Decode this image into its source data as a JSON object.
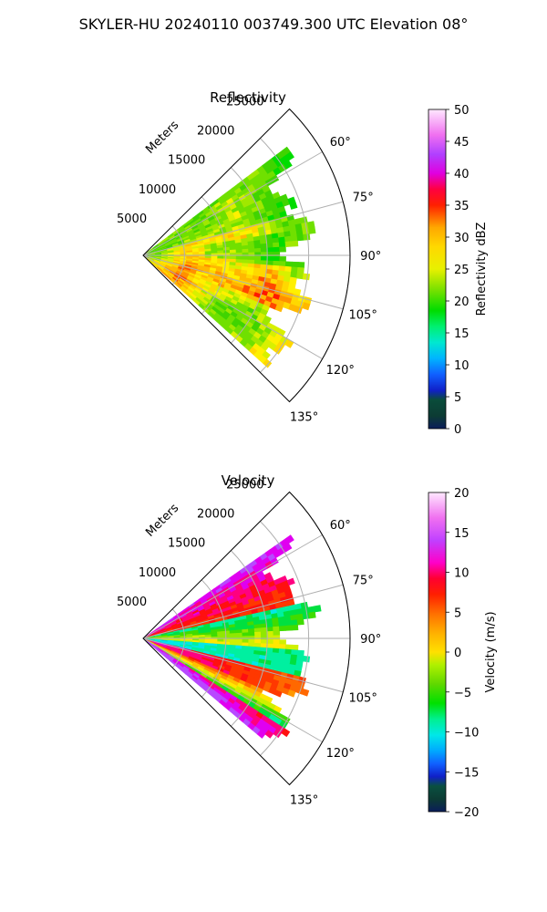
{
  "suptitle": "SKYLER-HU  20240110  003749.300 UTC Elevation 08°",
  "colors": {
    "background": "#ffffff",
    "grid": "#b0b0b0",
    "axis": "#000000"
  },
  "chart_data": [
    {
      "type": "polar-sector",
      "title": "Reflectivity",
      "radius_label": "Meters",
      "radius_ticks": [
        5000,
        10000,
        15000,
        20000,
        25000
      ],
      "radius_tick_labels": [
        "5000",
        "10000",
        "15000",
        "20000",
        "25000"
      ],
      "rlim": [
        0,
        25000
      ],
      "theta_range_deg": [
        45,
        135
      ],
      "theta_ticks": [
        60,
        75,
        90,
        105,
        120,
        135
      ],
      "theta_tick_labels": [
        "60°",
        "75°",
        "90°",
        "105°",
        "120°",
        "135°"
      ],
      "data_extent": {
        "theta_deg": [
          53,
          132
        ],
        "max_range_m": 22500
      },
      "colorbar": {
        "label": "Reflectivity dBZ",
        "range": [
          0,
          50
        ],
        "ticks": [
          0,
          5,
          10,
          15,
          20,
          25,
          30,
          35,
          40,
          45,
          50
        ],
        "tick_labels": [
          "0",
          "5",
          "10",
          "15",
          "20",
          "25",
          "30",
          "35",
          "40",
          "45",
          "50"
        ]
      },
      "field_description": "mostly 20-30 dBZ, bands of 30-37 dBZ near 95-110°",
      "grid": true
    },
    {
      "type": "polar-sector",
      "title": "Velocity",
      "radius_label": "Meters",
      "radius_ticks": [
        5000,
        10000,
        15000,
        20000,
        25000
      ],
      "radius_tick_labels": [
        "5000",
        "10000",
        "15000",
        "20000",
        "25000"
      ],
      "rlim": [
        0,
        25000
      ],
      "theta_range_deg": [
        45,
        135
      ],
      "theta_ticks": [
        60,
        75,
        90,
        105,
        120,
        135
      ],
      "theta_tick_labels": [
        "60°",
        "75°",
        "90°",
        "105°",
        "120°",
        "135°"
      ],
      "data_extent": {
        "theta_deg": [
          55,
          130
        ],
        "max_range_m": 22500
      },
      "colorbar": {
        "label": "Velocity (m/s)",
        "range": [
          -20,
          20
        ],
        "ticks": [
          -20,
          -15,
          -10,
          -5,
          0,
          5,
          10,
          15,
          20
        ],
        "tick_labels": [
          "−20",
          "−15",
          "−10",
          "−5",
          "0",
          "5",
          "10",
          "15",
          "20"
        ]
      },
      "field_description": "+10..+15 m/s toward 55-75°, ~-5 m/s near 90°, folded -15..+15 bands at 100-130°",
      "grid": true
    }
  ]
}
